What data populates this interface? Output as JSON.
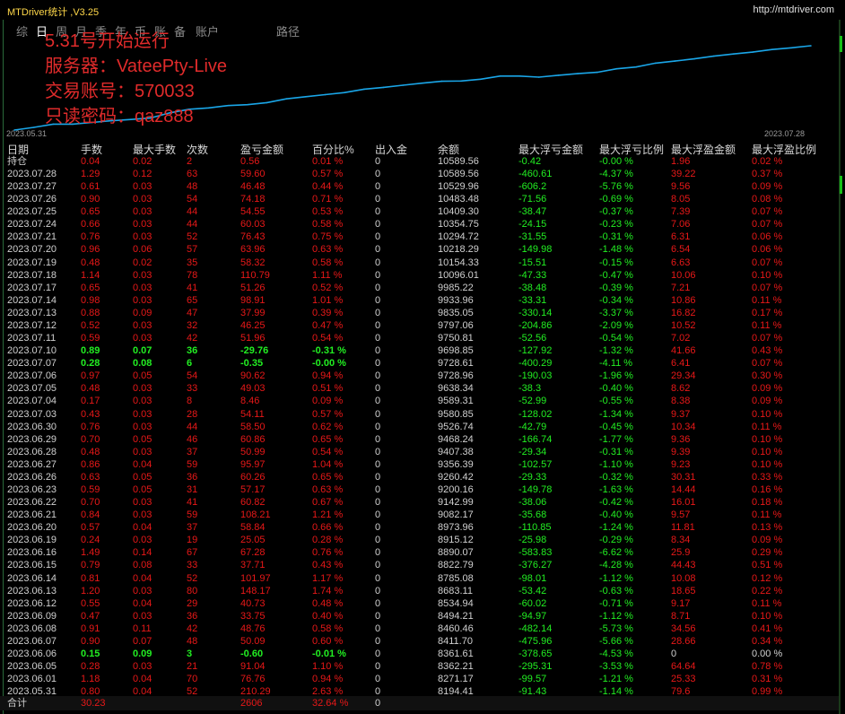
{
  "app": {
    "title": "MTDriver统计 ,V3.25",
    "url": "http://mtdriver.com"
  },
  "tabs": [
    "综",
    "日",
    "周",
    "月",
    "季",
    "年",
    "币",
    "账",
    "备",
    "账户",
    "路径"
  ],
  "overlay": {
    "line1": "5.31号开始运行",
    "line2": "服务器：VateePty-Live",
    "line3": "交易账号：570033",
    "line4": "只读密码：qaz888"
  },
  "chart_data": {
    "type": "line",
    "x_start_label": "2023.05.31",
    "x_end_label": "2023.07.28",
    "line_color": "#1aa6e8",
    "x": [
      "2023.05.31",
      "2023.06.01",
      "2023.06.05",
      "2023.06.06",
      "2023.06.07",
      "2023.06.08",
      "2023.06.09",
      "2023.06.12",
      "2023.06.13",
      "2023.06.14",
      "2023.06.15",
      "2023.06.16",
      "2023.06.19",
      "2023.06.20",
      "2023.06.21",
      "2023.06.22",
      "2023.06.23",
      "2023.06.26",
      "2023.06.27",
      "2023.06.28",
      "2023.06.29",
      "2023.06.30",
      "2023.07.03",
      "2023.07.04",
      "2023.07.05",
      "2023.07.06",
      "2023.07.07",
      "2023.07.10",
      "2023.07.11",
      "2023.07.12",
      "2023.07.13",
      "2023.07.14",
      "2023.07.17",
      "2023.07.18",
      "2023.07.19",
      "2023.07.20",
      "2023.07.21",
      "2023.07.24",
      "2023.07.25",
      "2023.07.26",
      "2023.07.27",
      "2023.07.28"
    ],
    "values": [
      8194.41,
      8271.17,
      8362.21,
      8361.61,
      8411.7,
      8460.46,
      8494.21,
      8534.94,
      8683.11,
      8785.08,
      8822.79,
      8890.07,
      8915.12,
      8973.96,
      9082.17,
      9142.99,
      9200.16,
      9260.42,
      9356.39,
      9407.38,
      9468.24,
      9526.74,
      9580.85,
      9589.31,
      9638.34,
      9728.96,
      9728.61,
      9698.85,
      9750.81,
      9797.06,
      9835.05,
      9933.96,
      9985.22,
      10096.01,
      10154.33,
      10218.29,
      10294.72,
      10354.75,
      10409.3,
      10483.48,
      10529.96,
      10589.56
    ]
  },
  "table": {
    "headers": [
      "日期",
      "手数",
      "最大手数",
      "次数",
      "盈亏金额",
      "百分比%",
      "出入金",
      "余额",
      "最大浮亏金额",
      "最大浮亏比例",
      "最大浮盈金额",
      "最大浮盈比例"
    ],
    "holding": [
      "持仓",
      "0.04",
      "0.02",
      "2",
      "0.56",
      "0.01 %",
      "0",
      "10589.56",
      "-0.42",
      "-0.00 %",
      "1.96",
      "0.02 %"
    ],
    "rows": [
      [
        "2023.07.28",
        "1.29",
        "0.12",
        "63",
        "59.60",
        "0.57 %",
        "0",
        "10589.56",
        "-460.61",
        "-4.37 %",
        "39.22",
        "0.37 %"
      ],
      [
        "2023.07.27",
        "0.61",
        "0.03",
        "48",
        "46.48",
        "0.44 %",
        "0",
        "10529.96",
        "-606.2",
        "-5.76 %",
        "9.56",
        "0.09 %"
      ],
      [
        "2023.07.26",
        "0.90",
        "0.03",
        "54",
        "74.18",
        "0.71 %",
        "0",
        "10483.48",
        "-71.56",
        "-0.69 %",
        "8.05",
        "0.08 %"
      ],
      [
        "2023.07.25",
        "0.65",
        "0.03",
        "44",
        "54.55",
        "0.53 %",
        "0",
        "10409.30",
        "-38.47",
        "-0.37 %",
        "7.39",
        "0.07 %"
      ],
      [
        "2023.07.24",
        "0.66",
        "0.03",
        "44",
        "60.03",
        "0.58 %",
        "0",
        "10354.75",
        "-24.15",
        "-0.23 %",
        "7.06",
        "0.07 %"
      ],
      [
        "2023.07.21",
        "0.76",
        "0.03",
        "52",
        "76.43",
        "0.75 %",
        "0",
        "10294.72",
        "-31.55",
        "-0.31 %",
        "6.31",
        "0.06 %"
      ],
      [
        "2023.07.20",
        "0.96",
        "0.06",
        "57",
        "63.96",
        "0.63 %",
        "0",
        "10218.29",
        "-149.98",
        "-1.48 %",
        "6.54",
        "0.06 %"
      ],
      [
        "2023.07.19",
        "0.48",
        "0.02",
        "35",
        "58.32",
        "0.58 %",
        "0",
        "10154.33",
        "-15.51",
        "-0.15 %",
        "6.63",
        "0.07 %"
      ],
      [
        "2023.07.18",
        "1.14",
        "0.03",
        "78",
        "110.79",
        "1.11 %",
        "0",
        "10096.01",
        "-47.33",
        "-0.47 %",
        "10.06",
        "0.10 %"
      ],
      [
        "2023.07.17",
        "0.65",
        "0.03",
        "41",
        "51.26",
        "0.52 %",
        "0",
        "9985.22",
        "-38.48",
        "-0.39 %",
        "7.21",
        "0.07 %"
      ],
      [
        "2023.07.14",
        "0.98",
        "0.03",
        "65",
        "98.91",
        "1.01 %",
        "0",
        "9933.96",
        "-33.31",
        "-0.34 %",
        "10.86",
        "0.11 %"
      ],
      [
        "2023.07.13",
        "0.88",
        "0.09",
        "47",
        "37.99",
        "0.39 %",
        "0",
        "9835.05",
        "-330.14",
        "-3.37 %",
        "16.82",
        "0.17 %"
      ],
      [
        "2023.07.12",
        "0.52",
        "0.03",
        "32",
        "46.25",
        "0.47 %",
        "0",
        "9797.06",
        "-204.86",
        "-2.09 %",
        "10.52",
        "0.11 %"
      ],
      [
        "2023.07.11",
        "0.59",
        "0.03",
        "42",
        "51.96",
        "0.54 %",
        "0",
        "9750.81",
        "-52.56",
        "-0.54 %",
        "7.02",
        "0.07 %"
      ],
      [
        "2023.07.10",
        "0.89",
        "0.07",
        "36",
        "-29.76",
        "-0.31 %",
        "0",
        "9698.85",
        "-127.92",
        "-1.32 %",
        "41.66",
        "0.43 %"
      ],
      [
        "2023.07.07",
        "0.28",
        "0.08",
        "6",
        "-0.35",
        "-0.00 %",
        "0",
        "9728.61",
        "-400.29",
        "-4.11 %",
        "6.41",
        "0.07 %"
      ],
      [
        "2023.07.06",
        "0.97",
        "0.05",
        "54",
        "90.62",
        "0.94 %",
        "0",
        "9728.96",
        "-190.03",
        "-1.96 %",
        "29.34",
        "0.30 %"
      ],
      [
        "2023.07.05",
        "0.48",
        "0.03",
        "33",
        "49.03",
        "0.51 %",
        "0",
        "9638.34",
        "-38.3",
        "-0.40 %",
        "8.62",
        "0.09 %"
      ],
      [
        "2023.07.04",
        "0.17",
        "0.03",
        "8",
        "8.46",
        "0.09 %",
        "0",
        "9589.31",
        "-52.99",
        "-0.55 %",
        "8.38",
        "0.09 %"
      ],
      [
        "2023.07.03",
        "0.43",
        "0.03",
        "28",
        "54.11",
        "0.57 %",
        "0",
        "9580.85",
        "-128.02",
        "-1.34 %",
        "9.37",
        "0.10 %"
      ],
      [
        "2023.06.30",
        "0.76",
        "0.03",
        "44",
        "58.50",
        "0.62 %",
        "0",
        "9526.74",
        "-42.79",
        "-0.45 %",
        "10.34",
        "0.11 %"
      ],
      [
        "2023.06.29",
        "0.70",
        "0.05",
        "46",
        "60.86",
        "0.65 %",
        "0",
        "9468.24",
        "-166.74",
        "-1.77 %",
        "9.36",
        "0.10 %"
      ],
      [
        "2023.06.28",
        "0.48",
        "0.03",
        "37",
        "50.99",
        "0.54 %",
        "0",
        "9407.38",
        "-29.34",
        "-0.31 %",
        "9.39",
        "0.10 %"
      ],
      [
        "2023.06.27",
        "0.86",
        "0.04",
        "59",
        "95.97",
        "1.04 %",
        "0",
        "9356.39",
        "-102.57",
        "-1.10 %",
        "9.23",
        "0.10 %"
      ],
      [
        "2023.06.26",
        "0.63",
        "0.05",
        "36",
        "60.26",
        "0.65 %",
        "0",
        "9260.42",
        "-29.33",
        "-0.32 %",
        "30.31",
        "0.33 %"
      ],
      [
        "2023.06.23",
        "0.59",
        "0.05",
        "31",
        "57.17",
        "0.63 %",
        "0",
        "9200.16",
        "-149.78",
        "-1.63 %",
        "14.44",
        "0.16 %"
      ],
      [
        "2023.06.22",
        "0.70",
        "0.03",
        "41",
        "60.82",
        "0.67 %",
        "0",
        "9142.99",
        "-38.06",
        "-0.42 %",
        "16.01",
        "0.18 %"
      ],
      [
        "2023.06.21",
        "0.84",
        "0.03",
        "59",
        "108.21",
        "1.21 %",
        "0",
        "9082.17",
        "-35.68",
        "-0.40 %",
        "9.57",
        "0.11 %"
      ],
      [
        "2023.06.20",
        "0.57",
        "0.04",
        "37",
        "58.84",
        "0.66 %",
        "0",
        "8973.96",
        "-110.85",
        "-1.24 %",
        "11.81",
        "0.13 %"
      ],
      [
        "2023.06.19",
        "0.24",
        "0.03",
        "19",
        "25.05",
        "0.28 %",
        "0",
        "8915.12",
        "-25.98",
        "-0.29 %",
        "8.34",
        "0.09 %"
      ],
      [
        "2023.06.16",
        "1.49",
        "0.14",
        "67",
        "67.28",
        "0.76 %",
        "0",
        "8890.07",
        "-583.83",
        "-6.62 %",
        "25.9",
        "0.29 %"
      ],
      [
        "2023.06.15",
        "0.79",
        "0.08",
        "33",
        "37.71",
        "0.43 %",
        "0",
        "8822.79",
        "-376.27",
        "-4.28 %",
        "44.43",
        "0.51 %"
      ],
      [
        "2023.06.14",
        "0.81",
        "0.04",
        "52",
        "101.97",
        "1.17 %",
        "0",
        "8785.08",
        "-98.01",
        "-1.12 %",
        "10.08",
        "0.12 %"
      ],
      [
        "2023.06.13",
        "1.20",
        "0.03",
        "80",
        "148.17",
        "1.74 %",
        "0",
        "8683.11",
        "-53.42",
        "-0.63 %",
        "18.65",
        "0.22 %"
      ],
      [
        "2023.06.12",
        "0.55",
        "0.04",
        "29",
        "40.73",
        "0.48 %",
        "0",
        "8534.94",
        "-60.02",
        "-0.71 %",
        "9.17",
        "0.11 %"
      ],
      [
        "2023.06.09",
        "0.47",
        "0.03",
        "36",
        "33.75",
        "0.40 %",
        "0",
        "8494.21",
        "-94.97",
        "-1.12 %",
        "8.71",
        "0.10 %"
      ],
      [
        "2023.06.08",
        "0.91",
        "0.11",
        "42",
        "48.76",
        "0.58 %",
        "0",
        "8460.46",
        "-482.14",
        "-5.73 %",
        "34.56",
        "0.41 %"
      ],
      [
        "2023.06.07",
        "0.90",
        "0.07",
        "48",
        "50.09",
        "0.60 %",
        "0",
        "8411.70",
        "-475.96",
        "-5.66 %",
        "28.66",
        "0.34 %"
      ],
      [
        "2023.06.06",
        "0.15",
        "0.09",
        "3",
        "-0.60",
        "-0.01 %",
        "0",
        "8361.61",
        "-378.65",
        "-4.53 %",
        "0",
        "0.00 %"
      ],
      [
        "2023.06.05",
        "0.28",
        "0.03",
        "21",
        "91.04",
        "1.10 %",
        "0",
        "8362.21",
        "-295.31",
        "-3.53 %",
        "64.64",
        "0.78 %"
      ],
      [
        "2023.06.01",
        "1.18",
        "0.04",
        "70",
        "76.76",
        "0.94 %",
        "0",
        "8271.17",
        "-99.57",
        "-1.21 %",
        "25.33",
        "0.31 %"
      ],
      [
        "2023.05.31",
        "0.80",
        "0.04",
        "52",
        "210.29",
        "2.63 %",
        "0",
        "8194.41",
        "-91.43",
        "-1.14 %",
        "79.6",
        "0.99 %"
      ]
    ],
    "total": [
      "合计",
      "30.23",
      "",
      "",
      "2606",
      "32.64 %",
      "0",
      "",
      "",
      "",
      "",
      ""
    ]
  },
  "colors": {
    "profit": "#e81818",
    "loss": "#22ee22",
    "neutral": "#d0d0d0",
    "accent": "#ffd84a"
  }
}
